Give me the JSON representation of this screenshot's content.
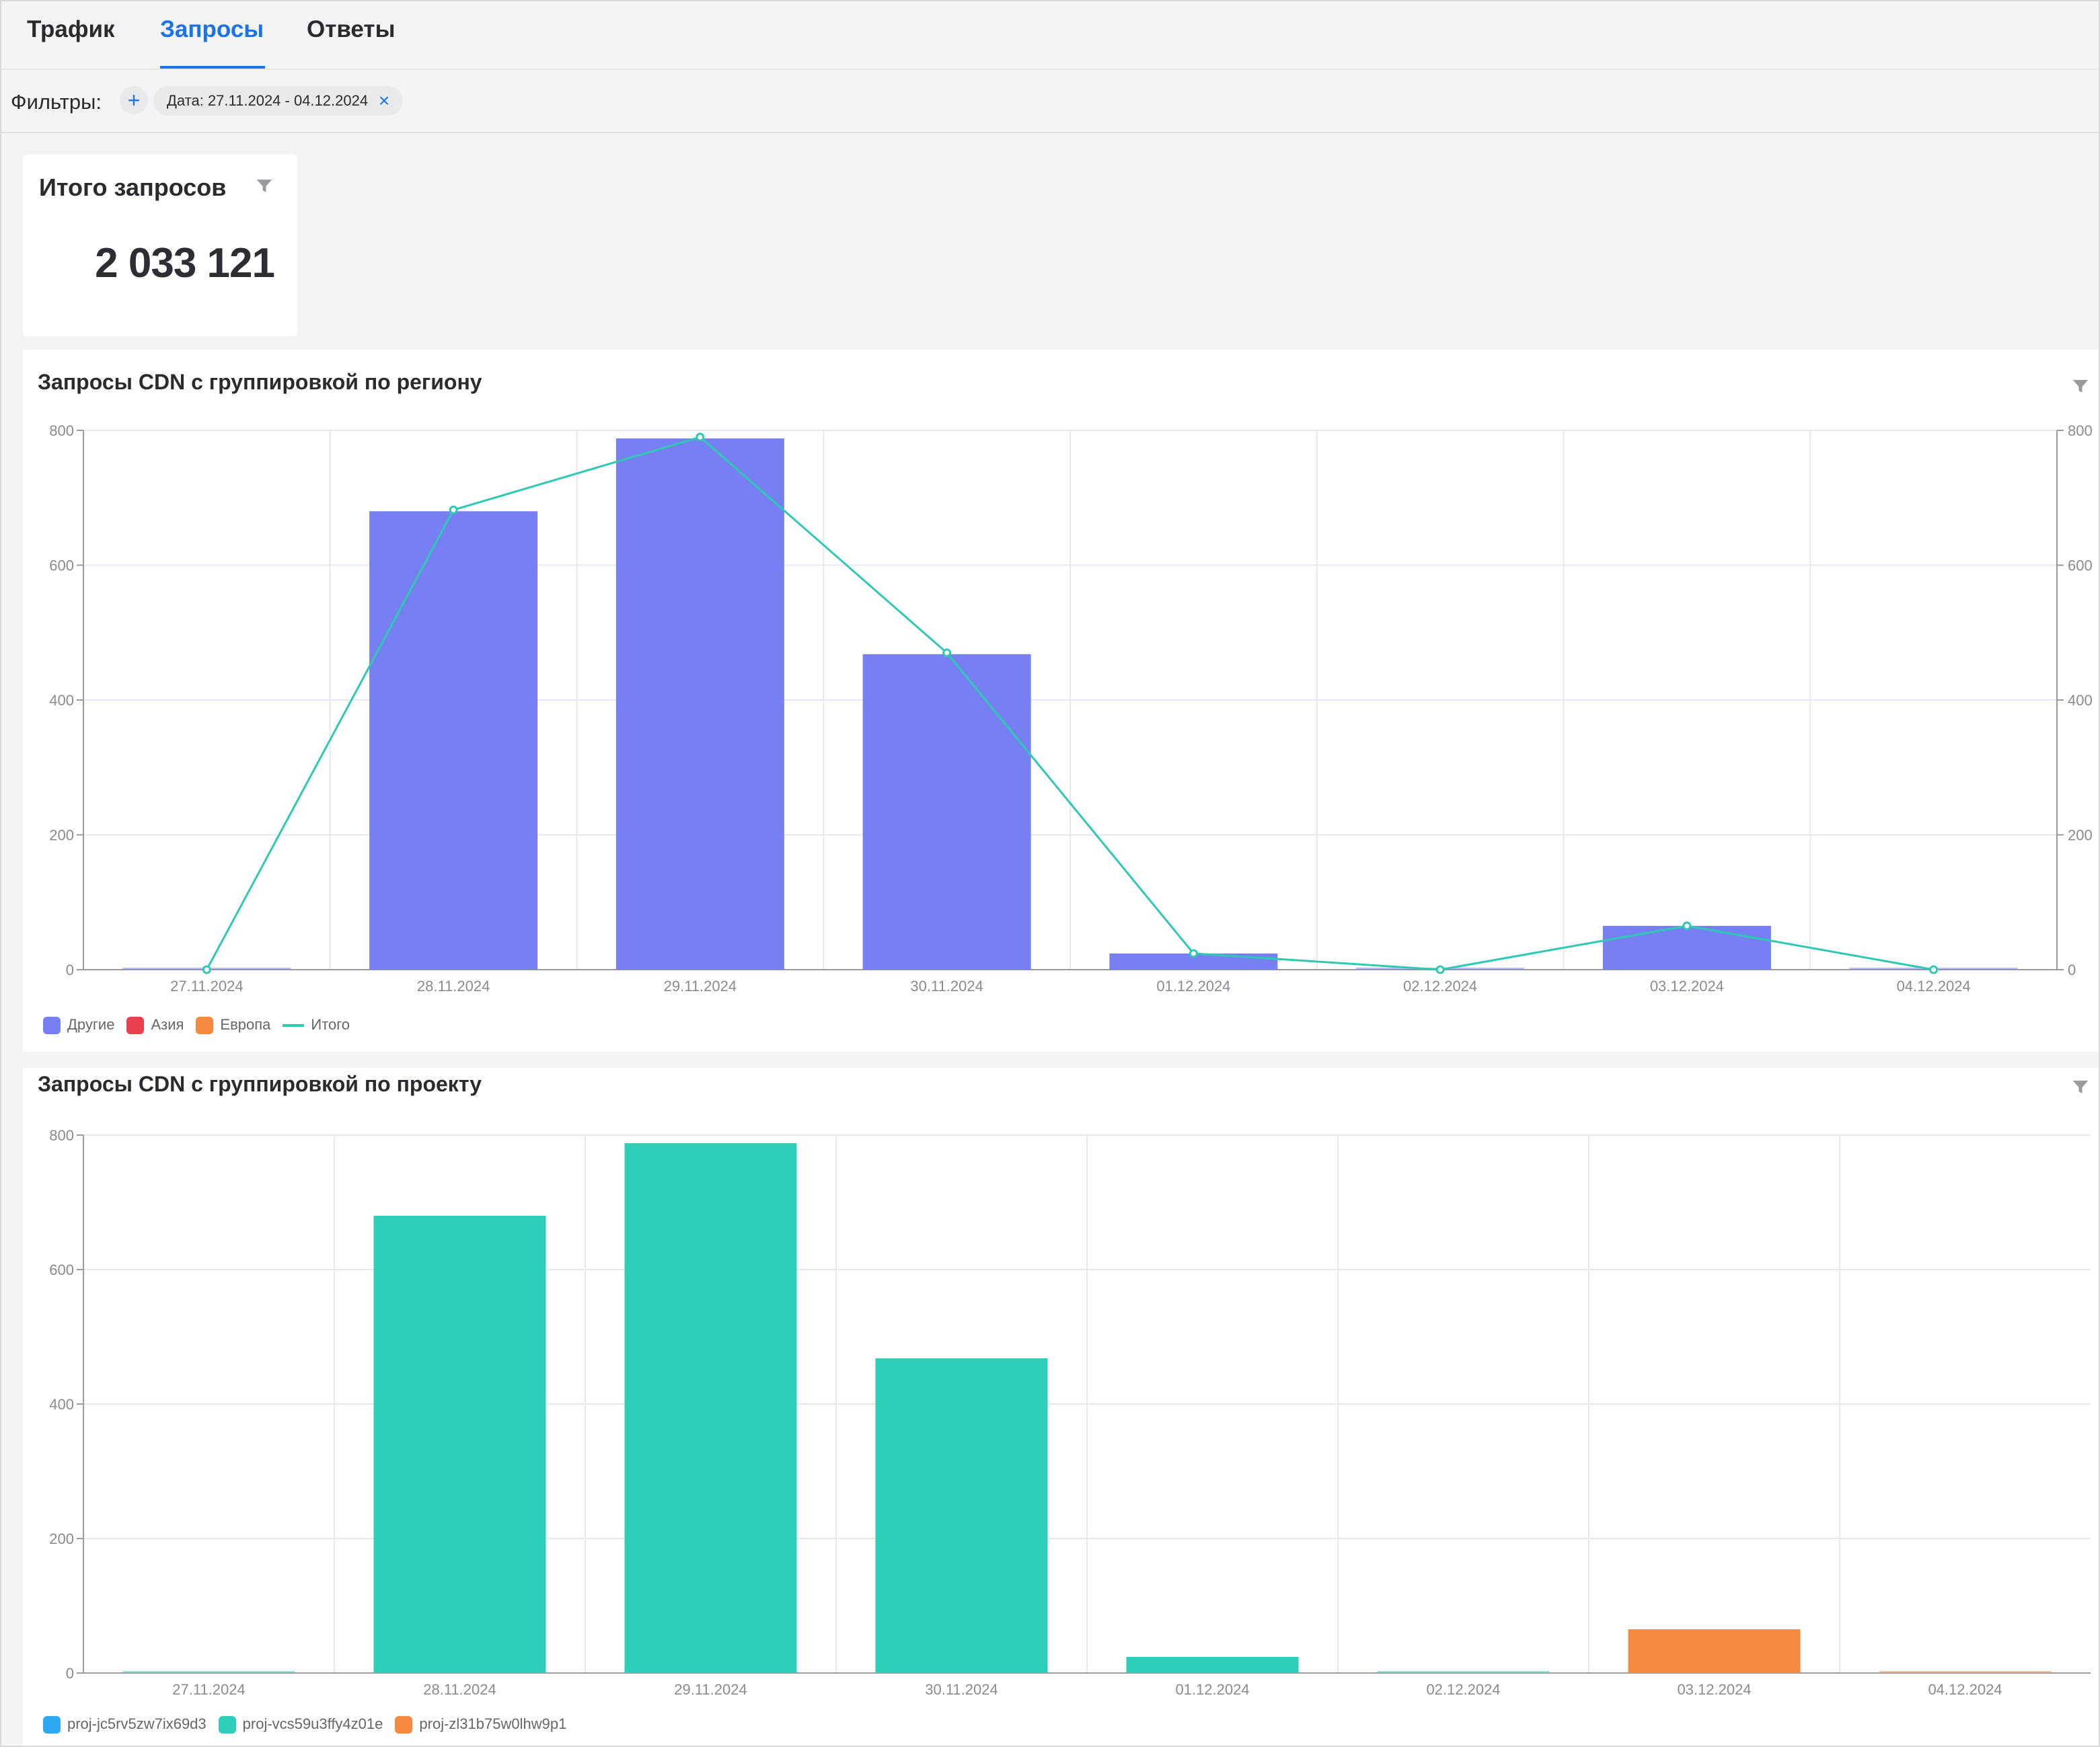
{
  "tabs": [
    {
      "label": "Трафик",
      "active": false
    },
    {
      "label": "Запросы",
      "active": true
    },
    {
      "label": "Ответы",
      "active": false
    }
  ],
  "filters": {
    "label": "Фильтры:",
    "add_icon": "plus-icon",
    "chip_label": "Дата: 27.11.2024 - 04.12.2024",
    "chip_close_icon": "close-icon"
  },
  "kpi": {
    "title": "Итого запросов",
    "value": "2 033 121",
    "filter_icon": "filter-icon"
  },
  "colors": {
    "accent": "#1a73e8",
    "other": "#7680f2",
    "asia": "#e8414b",
    "europe": "#f5893d",
    "total": "#2ec9b2",
    "proj1": "#2ea8f0",
    "proj2": "#2ecfb8",
    "proj3": "#f5893d"
  },
  "chart_data": [
    {
      "type": "bar",
      "title": "Запросы CDN с группировкой по региону",
      "categories": [
        "27.11.2024",
        "28.11.2024",
        "29.11.2024",
        "30.11.2024",
        "01.12.2024",
        "02.12.2024",
        "03.12.2024",
        "04.12.2024"
      ],
      "series": [
        {
          "name": "Другие",
          "kind": "bar",
          "color": "#7680f2",
          "values": [
            2,
            680,
            788,
            468,
            24,
            2,
            65,
            2
          ]
        },
        {
          "name": "Азия",
          "kind": "bar",
          "color": "#e8414b",
          "values": [
            0,
            0,
            0,
            0,
            0,
            0,
            0,
            0
          ]
        },
        {
          "name": "Европа",
          "kind": "bar",
          "color": "#f5893d",
          "values": [
            0,
            0,
            0,
            0,
            0,
            0,
            0,
            0
          ]
        },
        {
          "name": "Итого",
          "kind": "line",
          "color": "#2ec9b2",
          "values": [
            0,
            682,
            790,
            470,
            24,
            0,
            65,
            0
          ]
        }
      ],
      "yticks": [
        "0",
        "200",
        "400",
        "600",
        "800"
      ],
      "ylim": [
        0,
        800
      ],
      "right_axis": true,
      "grid": true,
      "legend_position": "bottom-left"
    },
    {
      "type": "bar",
      "title": "Запросы CDN с группировкой по проекту",
      "categories": [
        "27.11.2024",
        "28.11.2024",
        "29.11.2024",
        "30.11.2024",
        "01.12.2024",
        "02.12.2024",
        "03.12.2024",
        "04.12.2024"
      ],
      "series": [
        {
          "name": "proj-jc5rv5zw7ix69d3",
          "kind": "bar",
          "color": "#2ea8f0",
          "values": [
            0,
            0,
            0,
            0,
            0,
            0,
            0,
            0
          ]
        },
        {
          "name": "proj-vcs59u3ffy4z01e",
          "kind": "bar",
          "color": "#2ecfb8",
          "values": [
            2,
            680,
            788,
            468,
            24,
            2,
            0,
            0
          ]
        },
        {
          "name": "proj-zl31b75w0lhw9p1",
          "kind": "bar",
          "color": "#f5893d",
          "values": [
            0,
            0,
            0,
            0,
            0,
            0,
            65,
            2
          ]
        }
      ],
      "yticks": [
        "0",
        "200",
        "400",
        "600",
        "800"
      ],
      "ylim": [
        0,
        800
      ],
      "right_axis": false,
      "grid": true,
      "legend_position": "bottom-left"
    }
  ]
}
